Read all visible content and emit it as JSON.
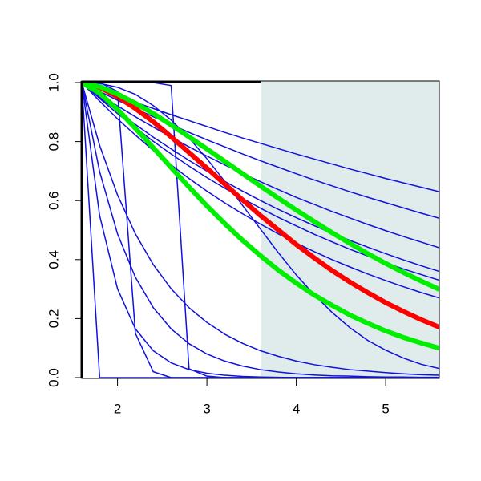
{
  "chart_data": {
    "type": "line",
    "x": [
      1.6,
      1.8,
      2.0,
      2.2,
      2.4,
      2.6,
      2.8,
      3.0,
      3.2,
      3.4,
      3.6,
      3.8,
      4.0,
      4.2,
      4.4,
      4.6,
      4.8,
      5.0,
      5.2,
      5.4,
      5.6
    ],
    "xlim": [
      1.6,
      5.6
    ],
    "xticks": [
      2,
      3,
      4,
      5
    ],
    "ylim": [
      0,
      1
    ],
    "yticks": [
      {
        "value": 0,
        "label": "0.0"
      },
      {
        "value": 0.2,
        "label": "0.2"
      },
      {
        "value": 0.4,
        "label": "0.4"
      },
      {
        "value": 0.6,
        "label": "0.6"
      },
      {
        "value": 0.8,
        "label": "0.8"
      },
      {
        "value": 1,
        "label": "1.0"
      }
    ],
    "shaded_x": [
      3.6,
      5.6
    ],
    "shade_color": "#e0ecec",
    "series": [
      {
        "color": "#1010e0",
        "width": 1.5,
        "values": [
          1,
          0.977,
          0.955,
          0.933,
          0.912,
          0.891,
          0.871,
          0.851,
          0.831,
          0.812,
          0.794,
          0.776,
          0.758,
          0.741,
          0.724,
          0.707,
          0.691,
          0.675,
          0.66,
          0.645,
          0.63
        ]
      },
      {
        "color": "#1010e0",
        "width": 1.5,
        "values": [
          1,
          0.97,
          0.94,
          0.912,
          0.884,
          0.857,
          0.831,
          0.806,
          0.782,
          0.758,
          0.735,
          0.713,
          0.691,
          0.67,
          0.65,
          0.63,
          0.611,
          0.593,
          0.575,
          0.557,
          0.54
        ]
      },
      {
        "color": "#1010e0",
        "width": 1.5,
        "values": [
          1,
          0.96,
          0.921,
          0.884,
          0.849,
          0.815,
          0.782,
          0.751,
          0.721,
          0.692,
          0.664,
          0.637,
          0.611,
          0.587,
          0.563,
          0.541,
          0.519,
          0.498,
          0.478,
          0.459,
          0.44
        ]
      },
      {
        "color": "#1010e0",
        "width": 1.5,
        "values": [
          1,
          0.95,
          0.903,
          0.858,
          0.815,
          0.775,
          0.736,
          0.7,
          0.665,
          0.632,
          0.6,
          0.57,
          0.542,
          0.515,
          0.489,
          0.465,
          0.442,
          0.42,
          0.399,
          0.379,
          0.36
        ]
      },
      {
        "color": "#1010e0",
        "width": 1.5,
        "values": [
          1,
          0.946,
          0.895,
          0.847,
          0.801,
          0.758,
          0.717,
          0.678,
          0.642,
          0.607,
          0.574,
          0.543,
          0.514,
          0.486,
          0.46,
          0.435,
          0.412,
          0.389,
          0.368,
          0.349,
          0.33
        ]
      },
      {
        "color": "#1010e0",
        "width": 1.5,
        "values": [
          1,
          0.937,
          0.877,
          0.822,
          0.77,
          0.721,
          0.675,
          0.632,
          0.592,
          0.555,
          0.52,
          0.487,
          0.456,
          0.427,
          0.4,
          0.375,
          0.351,
          0.329,
          0.308,
          0.288,
          0.27
        ]
      },
      {
        "color": "#1010e0",
        "width": 1.5,
        "values": [
          1,
          0.997,
          0.984,
          0.96,
          0.922,
          0.873,
          0.812,
          0.742,
          0.665,
          0.583,
          0.503,
          0.423,
          0.348,
          0.281,
          0.221,
          0.169,
          0.126,
          0.093,
          0.066,
          0.045,
          0.031
        ]
      },
      {
        "color": "#1010e0",
        "width": 1.5,
        "values": [
          1,
          0.787,
          0.619,
          0.487,
          0.383,
          0.301,
          0.237,
          0.187,
          0.147,
          0.116,
          0.091,
          0.072,
          0.056,
          0.044,
          0.035,
          0.027,
          0.022,
          0.017,
          0.013,
          0.01,
          0.008
        ]
      },
      {
        "color": "#1010e0",
        "width": 1.5,
        "values": [
          1,
          0.698,
          0.487,
          0.34,
          0.237,
          0.165,
          0.115,
          0.08,
          0.056,
          0.039,
          0.027,
          0.019,
          0.013,
          0.009,
          0.006,
          0.005,
          0.003,
          0.002,
          0.002,
          0.001,
          0.001
        ]
      },
      {
        "color": "#1010e0",
        "width": 1.5,
        "values": [
          1,
          0.549,
          0.301,
          0.165,
          0.091,
          0.05,
          0.027,
          0.015,
          0.008,
          0.004,
          0.002,
          0.001,
          0,
          0,
          0,
          0,
          0,
          0,
          0,
          0,
          0
        ]
      },
      {
        "color": "#1010e0",
        "width": 1.5,
        "values": [
          1,
          0,
          0,
          0,
          0,
          0,
          0,
          0,
          0,
          0,
          0,
          0,
          0,
          0,
          0,
          0,
          0,
          0,
          0,
          0,
          0
        ]
      },
      {
        "color": "#1010e0",
        "width": 1.5,
        "values": [
          1,
          1,
          0.97,
          0.15,
          0.02,
          0,
          0,
          0,
          0,
          0,
          0,
          0,
          0,
          0,
          0,
          0,
          0,
          0,
          0,
          0,
          0
        ]
      },
      {
        "color": "#1010e0",
        "width": 1.5,
        "values": [
          1,
          1,
          1,
          1,
          1,
          0.99,
          0.03,
          0.005,
          0,
          0,
          0,
          0,
          0,
          0,
          0,
          0,
          0,
          0,
          0,
          0,
          0
        ]
      },
      {
        "color": "#ff0000",
        "width": 6,
        "values": [
          1,
          0.984,
          0.952,
          0.912,
          0.867,
          0.816,
          0.763,
          0.71,
          0.656,
          0.602,
          0.549,
          0.5,
          0.451,
          0.406,
          0.363,
          0.324,
          0.288,
          0.254,
          0.224,
          0.196,
          0.171
        ]
      },
      {
        "color": "#00ee00",
        "width": 6,
        "values": [
          1,
          0.986,
          0.961,
          0.93,
          0.895,
          0.856,
          0.816,
          0.775,
          0.733,
          0.691,
          0.649,
          0.608,
          0.568,
          0.529,
          0.491,
          0.455,
          0.42,
          0.387,
          0.356,
          0.327,
          0.299
        ]
      },
      {
        "color": "#00ee00",
        "width": 6,
        "values": [
          1,
          0.964,
          0.909,
          0.845,
          0.779,
          0.712,
          0.646,
          0.582,
          0.522,
          0.465,
          0.413,
          0.364,
          0.32,
          0.28,
          0.245,
          0.212,
          0.184,
          0.158,
          0.136,
          0.117,
          0.1
        ]
      }
    ]
  }
}
